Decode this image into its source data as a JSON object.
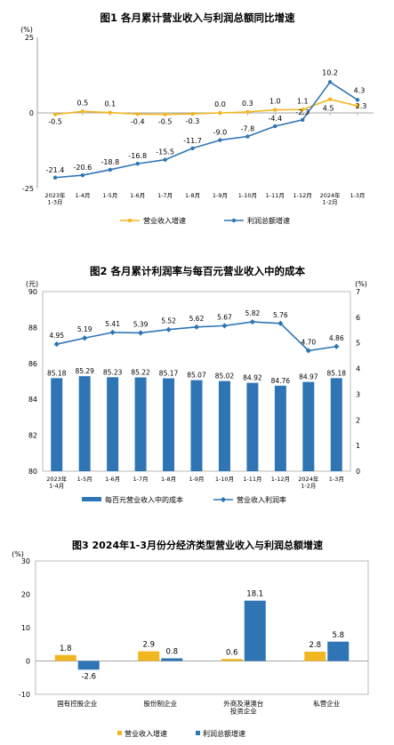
{
  "chart_data": [
    {
      "type": "line",
      "title": "图1  各月累计营业收入与利润总额同比增速",
      "ylabel": "(%)",
      "ylim": [
        -25,
        25
      ],
      "yticks": [
        "25",
        "0",
        "-25"
      ],
      "categories": [
        "2023年\n1-3月",
        "1-4月",
        "1-5月",
        "1-6月",
        "1-7月",
        "1-8月",
        "1-9月",
        "1-10月",
        "1-11月",
        "1-12月",
        "2024年\n1-2月",
        "1-3月"
      ],
      "series": [
        {
          "name": "营业收入增速",
          "color": "#f2b620",
          "values": [
            -0.5,
            0.5,
            0.1,
            -0.4,
            -0.5,
            -0.3,
            0.0,
            0.3,
            1.0,
            1.1,
            4.5,
            2.3
          ],
          "labels": [
            "-0.5",
            "0.5",
            "0.1",
            "-0.4",
            "-0.5",
            "-0.3",
            "0.0",
            "0.3",
            "1.0",
            "1.1",
            "4.5",
            "2.3"
          ]
        },
        {
          "name": "利润总额增速",
          "color": "#2f75b5",
          "values": [
            -21.4,
            -20.6,
            -18.8,
            -16.8,
            -15.5,
            -11.7,
            -9.0,
            -7.8,
            -4.4,
            -2.3,
            10.2,
            4.3
          ],
          "labels": [
            "-21.4",
            "-20.6",
            "-18.8",
            "-16.8",
            "-15.5",
            "-11.7",
            "-9.0",
            "-7.8",
            "-4.4",
            "-2.3",
            "10.2",
            "4.3"
          ]
        }
      ],
      "legend": "bottom"
    },
    {
      "type": "bar",
      "title": "图2  各月累计利润率与每百元营业收入中的成本",
      "ylabel": "(元)",
      "y2label": "(%)",
      "ylim": [
        80,
        90
      ],
      "y2lim": [
        0,
        7
      ],
      "yticks": [
        "90",
        "88",
        "86",
        "84",
        "82",
        "80"
      ],
      "y2ticks": [
        "7",
        "6",
        "5",
        "4",
        "3",
        "2",
        "1",
        "0"
      ],
      "categories": [
        "2023年\n1-4月",
        "1-5月",
        "1-6月",
        "1-7月",
        "1-8月",
        "1-9月",
        "1-10月",
        "1-11月",
        "1-12月",
        "2024年\n1-2月",
        "1-3月"
      ],
      "series": [
        {
          "name": "每百元营业收入中的成本",
          "color": "#2f75b5",
          "axis": "left",
          "values": [
            85.18,
            85.29,
            85.23,
            85.22,
            85.17,
            85.07,
            85.02,
            84.92,
            84.76,
            84.97,
            85.18
          ],
          "labels": [
            "85.18",
            "85.29",
            "85.23",
            "85.22",
            "85.17",
            "85.07",
            "85.02",
            "84.92",
            "84.76",
            "84.97",
            "85.18"
          ]
        },
        {
          "name": "营业收入利润率",
          "color": "#2f75b5",
          "axis": "right",
          "kind": "line",
          "values": [
            4.95,
            5.19,
            5.41,
            5.39,
            5.52,
            5.62,
            5.67,
            5.82,
            5.76,
            4.7,
            4.86
          ],
          "labels": [
            "4.95",
            "5.19",
            "5.41",
            "5.39",
            "5.52",
            "5.62",
            "5.67",
            "5.82",
            "5.76",
            "4.70",
            "4.86"
          ]
        }
      ],
      "legend": "bottom"
    },
    {
      "type": "bar",
      "title": "图3  2024年1-3月份分经济类型营业收入与利润总额增速",
      "ylabel": "(%)",
      "ylim": [
        -10,
        30
      ],
      "yticks": [
        "30",
        "20",
        "10",
        "0",
        "-10"
      ],
      "categories": [
        "国有控股企业",
        "股份制企业",
        "外商及港澳台\n投资企业",
        "私营企业"
      ],
      "series": [
        {
          "name": "营业收入增速",
          "color": "#f2b620",
          "values": [
            1.8,
            2.9,
            0.6,
            2.8
          ],
          "labels": [
            "1.8",
            "2.9",
            "0.6",
            "2.8"
          ]
        },
        {
          "name": "利润总额增速",
          "color": "#2f75b5",
          "values": [
            -2.6,
            0.8,
            18.1,
            5.8
          ],
          "labels": [
            "-2.6",
            "0.8",
            "18.1",
            "5.8"
          ]
        }
      ],
      "legend": "bottom"
    }
  ]
}
